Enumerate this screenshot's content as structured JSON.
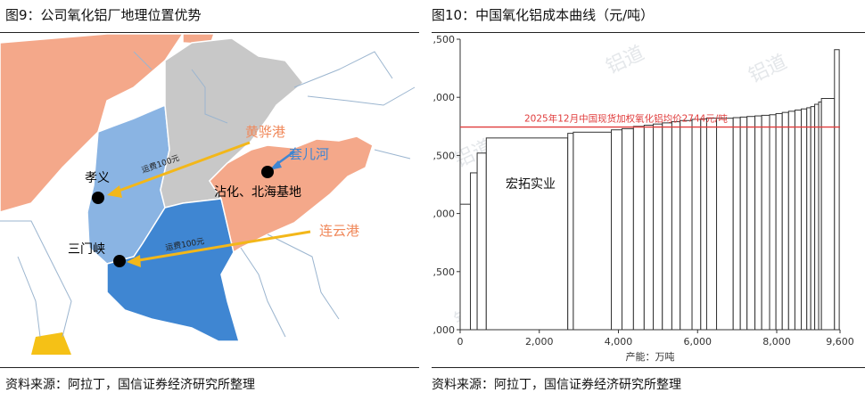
{
  "left": {
    "title": "图9：公司氧化铝厂地理位置优势",
    "source": "资料来源：阿拉丁，国信证券经济研究所整理",
    "map": {
      "colors": {
        "province_blue": "#8ab4e3",
        "province_blue_dark": "#3f86d2",
        "province_orange": "#f4a88a",
        "province_gray": "#c8c8c8",
        "province_yellow": "#f5c116",
        "arrow": "#f3b719",
        "river_blue": "#3f86d2",
        "port_orange": "#f0885a"
      },
      "labels": {
        "port_huanghua": "黄骅港",
        "port_lianyungang": "连云港",
        "river_taoer": "套儿河",
        "plant_xiaoyi": "孝义",
        "plant_sanmenxia": "三门峡",
        "plant_zhanhua": "沾化、北海基地",
        "freight_1": "运费100元",
        "freight_2": "运费100元"
      }
    }
  },
  "right": {
    "title": "图10：中国氧化铝成本曲线（元/吨）",
    "source": "资料来源：阿拉丁，国信证券经济研究所整理",
    "chart_data": {
      "type": "bar",
      "subtype": "cost-curve",
      "title": "",
      "xlabel": "产能：万吨",
      "ylabel": "",
      "xlim": [
        0,
        9600
      ],
      "ylim": [
        1000,
        3500
      ],
      "x_ticks": [
        0,
        2000,
        4000,
        6000,
        8000,
        9600
      ],
      "x_tick_labels": [
        "0",
        "2,000",
        "4,000",
        "6,000",
        "8,000",
        "9,600"
      ],
      "y_ticks": [
        1000,
        1500,
        2000,
        2500,
        3000,
        3500
      ],
      "y_tick_labels": [
        ",000",
        ",500",
        ",000",
        ",500",
        ",000",
        ",500"
      ],
      "reference_line": {
        "value": 2744,
        "label": "2025年12月中国现货加权氧化铝均价2744元/吨",
        "color": "#e03c3c"
      },
      "annotation": {
        "text": "宏拓实业",
        "x": 1150,
        "y": 2220
      },
      "grid": false,
      "colors": {
        "bar_edge": "#333333",
        "bar_fill": "#ffffff"
      },
      "bars": [
        {
          "x0": 0,
          "x1": 260,
          "y": 2080
        },
        {
          "x0": 260,
          "x1": 430,
          "y": 2350
        },
        {
          "x0": 430,
          "x1": 660,
          "y": 2520
        },
        {
          "x0": 660,
          "x1": 2720,
          "y": 2650
        },
        {
          "x0": 2720,
          "x1": 2860,
          "y": 2690
        },
        {
          "x0": 2860,
          "x1": 3820,
          "y": 2700
        },
        {
          "x0": 3820,
          "x1": 4090,
          "y": 2720
        },
        {
          "x0": 4090,
          "x1": 4380,
          "y": 2730
        },
        {
          "x0": 4380,
          "x1": 4650,
          "y": 2750
        },
        {
          "x0": 4650,
          "x1": 4880,
          "y": 2760
        },
        {
          "x0": 4880,
          "x1": 5110,
          "y": 2770
        },
        {
          "x0": 5110,
          "x1": 5350,
          "y": 2780
        },
        {
          "x0": 5350,
          "x1": 5560,
          "y": 2790
        },
        {
          "x0": 5560,
          "x1": 5860,
          "y": 2800
        },
        {
          "x0": 5860,
          "x1": 6080,
          "y": 2810
        },
        {
          "x0": 6080,
          "x1": 6230,
          "y": 2815
        },
        {
          "x0": 6230,
          "x1": 6480,
          "y": 2820
        },
        {
          "x0": 6480,
          "x1": 6900,
          "y": 2820
        },
        {
          "x0": 6900,
          "x1": 7080,
          "y": 2825
        },
        {
          "x0": 7080,
          "x1": 7250,
          "y": 2830
        },
        {
          "x0": 7250,
          "x1": 7450,
          "y": 2835
        },
        {
          "x0": 7450,
          "x1": 7620,
          "y": 2840
        },
        {
          "x0": 7620,
          "x1": 7820,
          "y": 2845
        },
        {
          "x0": 7820,
          "x1": 7980,
          "y": 2850
        },
        {
          "x0": 7980,
          "x1": 8140,
          "y": 2860
        },
        {
          "x0": 8140,
          "x1": 8300,
          "y": 2870
        },
        {
          "x0": 8300,
          "x1": 8460,
          "y": 2880
        },
        {
          "x0": 8460,
          "x1": 8620,
          "y": 2890
        },
        {
          "x0": 8620,
          "x1": 8760,
          "y": 2900
        },
        {
          "x0": 8760,
          "x1": 8860,
          "y": 2910
        },
        {
          "x0": 8860,
          "x1": 8960,
          "y": 2920
        },
        {
          "x0": 8960,
          "x1": 9060,
          "y": 2940
        },
        {
          "x0": 9060,
          "x1": 9130,
          "y": 2960
        },
        {
          "x0": 9130,
          "x1": 9460,
          "y": 2990
        },
        {
          "x0": 9460,
          "x1": 9580,
          "y": 3410
        }
      ]
    }
  }
}
